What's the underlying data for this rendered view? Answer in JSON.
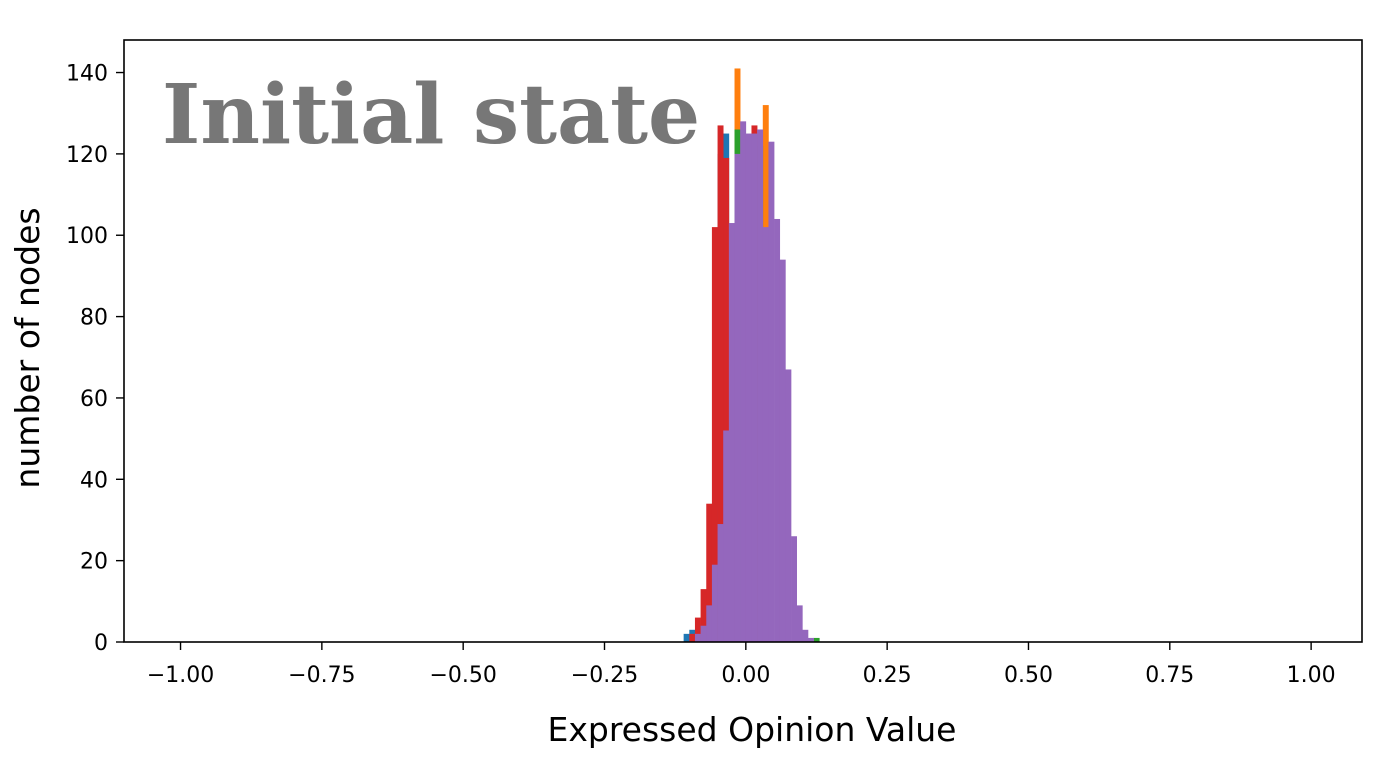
{
  "chart_data": {
    "type": "bar",
    "subtype": "overlapping-histogram",
    "title": "",
    "xlabel": "Expressed Opinion Value",
    "ylabel": "number of nodes",
    "annotation": "Initial state",
    "xlim": [
      -1.1,
      1.09
    ],
    "ylim": [
      0,
      148
    ],
    "xticks": [
      -1.0,
      -0.75,
      -0.5,
      -0.25,
      0.0,
      0.25,
      0.5,
      0.75,
      1.0
    ],
    "xtick_labels": [
      "−1.00",
      "−0.75",
      "−0.50",
      "−0.25",
      "0.00",
      "0.25",
      "0.50",
      "0.75",
      "1.00"
    ],
    "yticks": [
      0,
      20,
      40,
      60,
      80,
      100,
      120,
      140
    ],
    "ytick_labels": [
      "0",
      "20",
      "40",
      "60",
      "80",
      "100",
      "120",
      "140"
    ],
    "grid": false,
    "legend": "none",
    "bin_width": 0.01,
    "series": [
      {
        "color": "#1f77b4",
        "bins": [
          {
            "x0": -0.11,
            "count": 2
          },
          {
            "x0": -0.1,
            "count": 3
          },
          {
            "x0": -0.05,
            "count": 120
          },
          {
            "x0": -0.04,
            "count": 125
          }
        ]
      },
      {
        "color": "#ff7f0e",
        "bins": [
          {
            "x0": -0.02,
            "count": 141
          },
          {
            "x0": 0.03,
            "count": 132
          }
        ]
      },
      {
        "color": "#2ca02c",
        "bins": [
          {
            "x0": -0.02,
            "count": 126
          },
          {
            "x0": 0.02,
            "count": 122
          },
          {
            "x0": 0.03,
            "count": 90
          },
          {
            "x0": 0.12,
            "count": 1
          }
        ]
      },
      {
        "color": "#d62728",
        "bins": [
          {
            "x0": -0.1,
            "count": 2
          },
          {
            "x0": -0.09,
            "count": 6
          },
          {
            "x0": -0.08,
            "count": 13
          },
          {
            "x0": -0.07,
            "count": 34
          },
          {
            "x0": -0.06,
            "count": 102
          },
          {
            "x0": -0.05,
            "count": 127
          },
          {
            "x0": -0.04,
            "count": 119
          },
          {
            "x0": -0.03,
            "count": 99
          },
          {
            "x0": 0.01,
            "count": 127
          },
          {
            "x0": 0.02,
            "count": 64
          }
        ]
      },
      {
        "color": "#9467bd",
        "bins": [
          {
            "x0": -0.09,
            "count": 2
          },
          {
            "x0": -0.08,
            "count": 4
          },
          {
            "x0": -0.07,
            "count": 9
          },
          {
            "x0": -0.06,
            "count": 19
          },
          {
            "x0": -0.05,
            "count": 29
          },
          {
            "x0": -0.04,
            "count": 52
          },
          {
            "x0": -0.03,
            "count": 103
          },
          {
            "x0": -0.02,
            "count": 120
          },
          {
            "x0": -0.01,
            "count": 128
          },
          {
            "x0": 0.0,
            "count": 125
          },
          {
            "x0": 0.01,
            "count": 125
          },
          {
            "x0": 0.02,
            "count": 126
          },
          {
            "x0": 0.03,
            "count": 102
          },
          {
            "x0": 0.04,
            "count": 123
          },
          {
            "x0": 0.05,
            "count": 104
          },
          {
            "x0": 0.06,
            "count": 94
          },
          {
            "x0": 0.07,
            "count": 67
          },
          {
            "x0": 0.08,
            "count": 26
          },
          {
            "x0": 0.09,
            "count": 9
          },
          {
            "x0": 0.1,
            "count": 3
          },
          {
            "x0": 0.11,
            "count": 1
          }
        ]
      }
    ]
  }
}
